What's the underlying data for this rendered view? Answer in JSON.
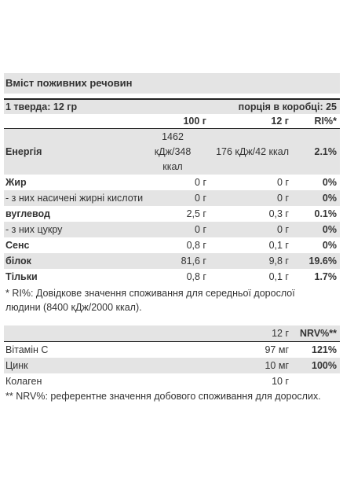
{
  "title": "Вміст поживних речовин",
  "serving": {
    "left": "1 тверда: 12 гр",
    "right": "порція в коробці: 25"
  },
  "columns": {
    "c1": "100 г",
    "c2": "12 г",
    "c3": "RI%*"
  },
  "rows": [
    {
      "label": "Енергія",
      "c1": "1462\nкДж/348\nккал",
      "c2": "176 кДж/42 ккал",
      "c3": "2.1%"
    },
    {
      "label": "Жир",
      "c1": "0 г",
      "c2": "0 г",
      "c3": "0%"
    },
    {
      "label": "- з них насичені жирні кислоти",
      "c1": "0 г",
      "c2": "0 г",
      "c3": "0%"
    },
    {
      "label": "вуглевод",
      "c1": "2,5 г",
      "c2": "0,3 г",
      "c3": "0.1%"
    },
    {
      "label": "- з них цукру",
      "c1": "0 г",
      "c2": "0 г",
      "c3": "0%"
    },
    {
      "label": "Сенс",
      "c1": "0,8 г",
      "c2": "0,1 г",
      "c3": "0%"
    },
    {
      "label": "білок",
      "c1": "81,6 г",
      "c2": "9,8 г",
      "c3": "19.6%"
    },
    {
      "label": "Тільки",
      "c1": "0,8 г",
      "c2": "0,1 г",
      "c3": "1.7%"
    }
  ],
  "note1_line1": "* RI%: Довідкове значення споживання для середньої дорослої",
  "note1_line2": "людини (8400 кДж/2000 ккал).",
  "table2": {
    "head_c2": "12 г",
    "head_c3": "NRV%**",
    "rows": [
      {
        "label": "Вітамін C",
        "c2": "97 мг",
        "c3": "121%"
      },
      {
        "label": "Цинк",
        "c2": "10 мг",
        "c3": "100%"
      },
      {
        "label": "Колаген",
        "c2": "10 г",
        "c3": ""
      }
    ]
  },
  "note2": "** NRV%: референтне значення добового споживання для дорослих."
}
